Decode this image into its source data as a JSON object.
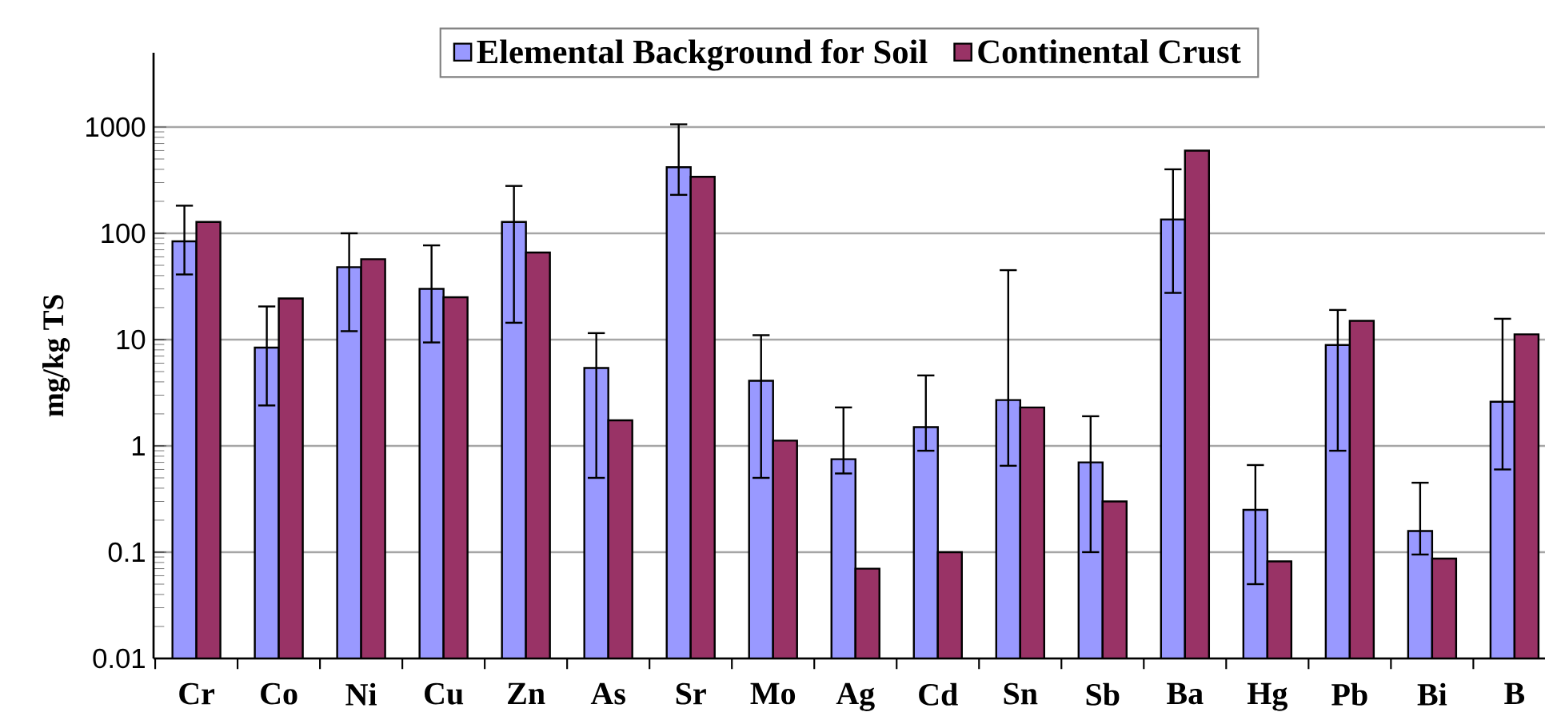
{
  "chart_data": {
    "type": "bar",
    "ylabel": "mg/kg TS",
    "categories": [
      "Cr",
      "Co",
      "Ni",
      "Cu",
      "Zn",
      "As",
      "Sr",
      "Mo",
      "Ag",
      "Cd",
      "Sn",
      "Sb",
      "Ba",
      "Hg",
      "Pb",
      "Bi",
      "B"
    ],
    "series": [
      {
        "name": "Elemental Background for Soil",
        "color": "#9999ff",
        "values": [
          84,
          8.4,
          48,
          30,
          128,
          5.4,
          419,
          4.1,
          0.75,
          1.5,
          2.7,
          0.7,
          135,
          0.25,
          8.9,
          0.158,
          2.6
        ],
        "errors": [
          [
            41,
            182
          ],
          [
            2.4,
            20.5
          ],
          [
            12,
            100
          ],
          [
            9.4,
            77
          ],
          [
            14.4,
            279
          ],
          [
            0.5,
            11.5
          ],
          [
            230,
            1060
          ],
          [
            0.5,
            11
          ],
          [
            0.55,
            2.3
          ],
          [
            0.9,
            4.6
          ],
          [
            0.65,
            45
          ],
          [
            0.1,
            1.9
          ],
          [
            27.5,
            400
          ],
          [
            0.05,
            0.66
          ],
          [
            0.9,
            19
          ],
          [
            0.095,
            0.45
          ],
          [
            0.6,
            15.7
          ]
        ]
      },
      {
        "name": "Continental Crust",
        "color": "#993366",
        "values": [
          128,
          24.4,
          57,
          25,
          66,
          1.74,
          340,
          1.12,
          0.07,
          0.1,
          2.3,
          0.3,
          600,
          0.082,
          15,
          0.087,
          11.2
        ]
      }
    ],
    "log": true,
    "ylim": [
      0.01,
      5000
    ],
    "yticks": [
      0.01,
      0.1,
      1,
      10,
      100,
      1000
    ],
    "grid": "y",
    "legend": "top"
  }
}
